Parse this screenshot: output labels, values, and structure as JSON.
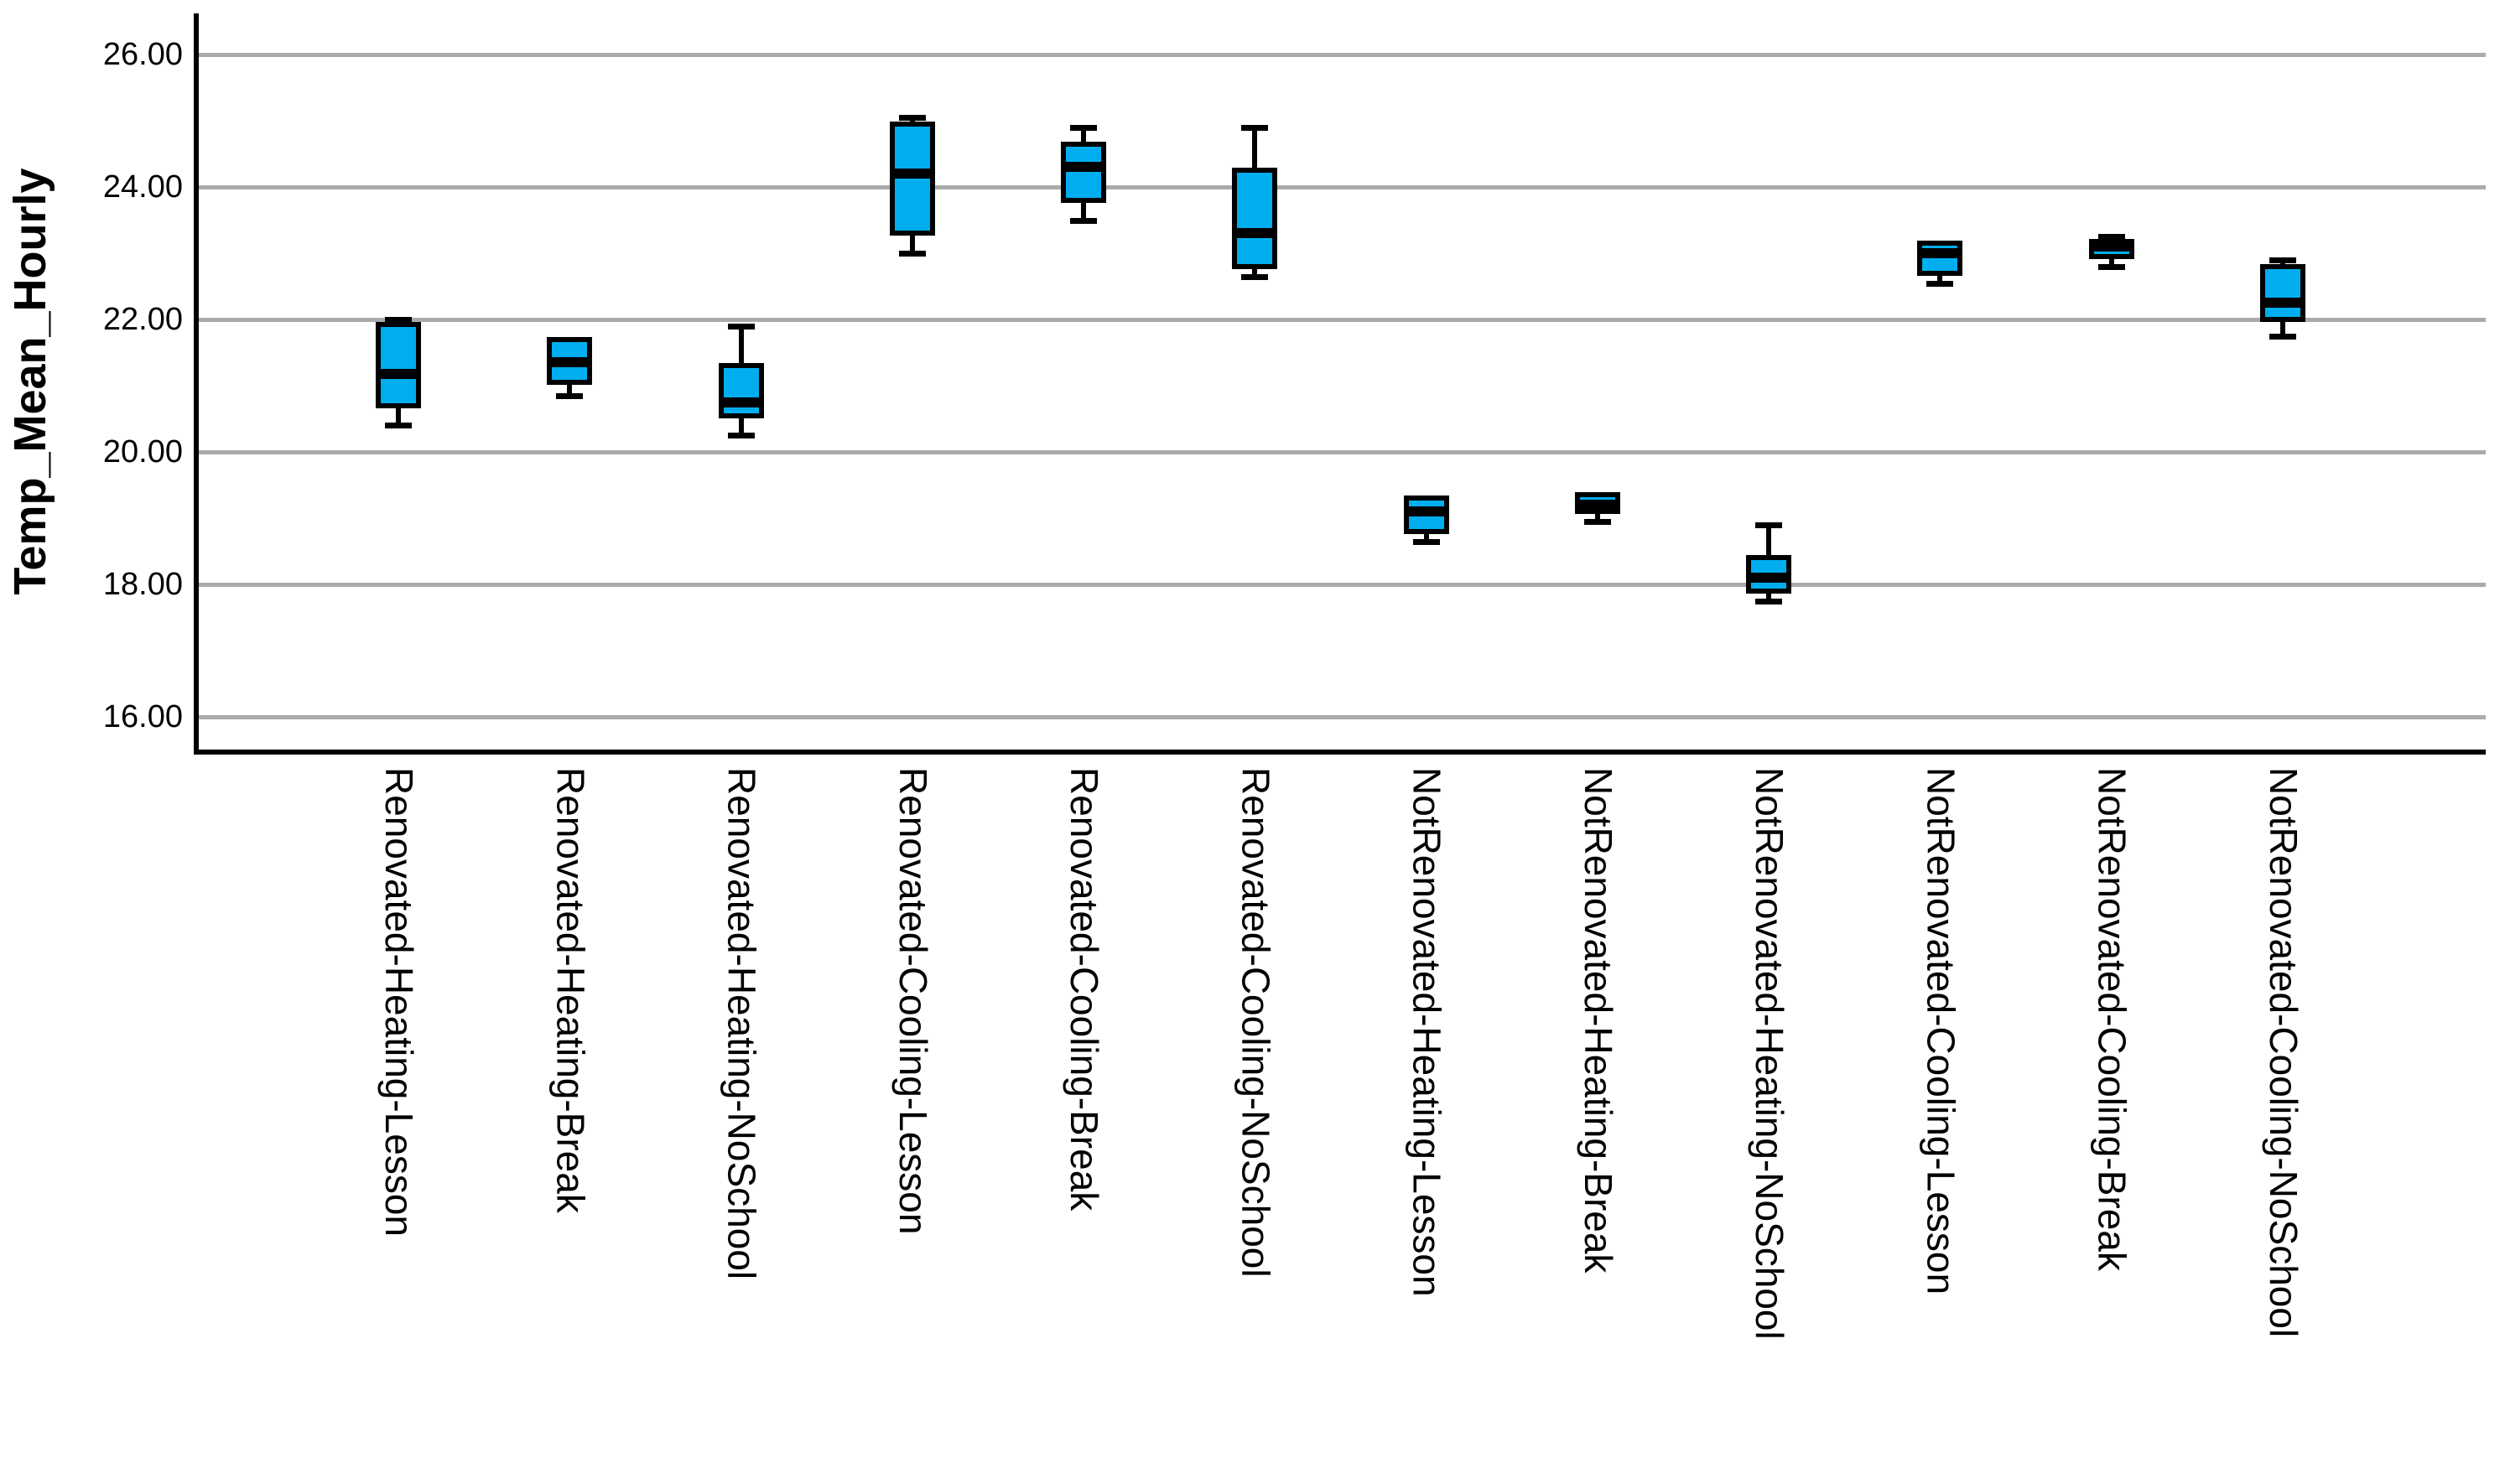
{
  "chart_data": {
    "type": "boxplot",
    "title": "",
    "xlabel": "",
    "ylabel": "Temp_Mean_Hourly",
    "yticks": [
      16,
      18,
      20,
      22,
      24,
      26
    ],
    "ytick_labels": [
      "16.00",
      "18.00",
      "20.00",
      "22.00",
      "24.00",
      "26.00"
    ],
    "ylim": [
      15.5,
      26.6
    ],
    "grid": "horizontal-only",
    "legend": "none",
    "colors": {
      "box_fill": "#00AEEF",
      "box_border": "#000000",
      "median": "#000000",
      "gridline": "#ababab",
      "axis": "#000000",
      "text": "#000000",
      "background": "#ffffff"
    },
    "categories": [
      "Renovated-Heating-Lesson",
      "Renovated-Heating-Break",
      "Renovated-Heating-NoSchool",
      "Renovated-Cooling-Lesson",
      "Renovated-Cooling-Break",
      "Renovated-Cooling-NoSchool",
      "NotRenovated-Heating-Lesson",
      "NotRenovated-Heating-Break",
      "NotRenovated-Heating-NoSchool",
      "NotRenovated-Cooling-Lesson",
      "NotRenovated-Cooling-Break",
      "NotRenovated-Cooling-NoSchool"
    ],
    "series": [
      {
        "category": "Renovated-Heating-Lesson",
        "min": 20.4,
        "q1": 20.7,
        "median": 21.18,
        "q3": 21.93,
        "max": 22.0
      },
      {
        "category": "Renovated-Heating-Break",
        "min": 20.85,
        "q1": 21.05,
        "median": 21.35,
        "q3": 21.7,
        "max": 21.7
      },
      {
        "category": "Renovated-Heating-NoSchool",
        "min": 20.25,
        "q1": 20.55,
        "median": 20.75,
        "q3": 21.3,
        "max": 21.9
      },
      {
        "category": "Renovated-Cooling-Lesson",
        "min": 23.0,
        "q1": 23.3,
        "median": 24.2,
        "q3": 24.95,
        "max": 25.05
      },
      {
        "category": "Renovated-Cooling-Break",
        "min": 23.5,
        "q1": 23.8,
        "median": 24.3,
        "q3": 24.65,
        "max": 24.9
      },
      {
        "category": "Renovated-Cooling-NoSchool",
        "min": 22.65,
        "q1": 22.8,
        "median": 23.3,
        "q3": 24.25,
        "max": 24.9
      },
      {
        "category": "NotRenovated-Heating-Lesson",
        "min": 18.65,
        "q1": 18.8,
        "median": 19.1,
        "q3": 19.3,
        "max": 19.3
      },
      {
        "category": "NotRenovated-Heating-Break",
        "min": 18.95,
        "q1": 19.1,
        "median": 19.2,
        "q3": 19.35,
        "max": 19.35
      },
      {
        "category": "NotRenovated-Heating-NoSchool",
        "min": 17.75,
        "q1": 17.9,
        "median": 18.1,
        "q3": 18.4,
        "max": 18.9
      },
      {
        "category": "NotRenovated-Cooling-Lesson",
        "min": 22.55,
        "q1": 22.7,
        "median": 23.0,
        "q3": 23.15,
        "max": 23.15
      },
      {
        "category": "NotRenovated-Cooling-Break",
        "min": 22.8,
        "q1": 22.95,
        "median": 23.1,
        "q3": 23.18,
        "max": 23.25
      },
      {
        "category": "NotRenovated-Cooling-NoSchool",
        "min": 21.75,
        "q1": 22.0,
        "median": 22.25,
        "q3": 22.8,
        "max": 22.9
      }
    ]
  }
}
